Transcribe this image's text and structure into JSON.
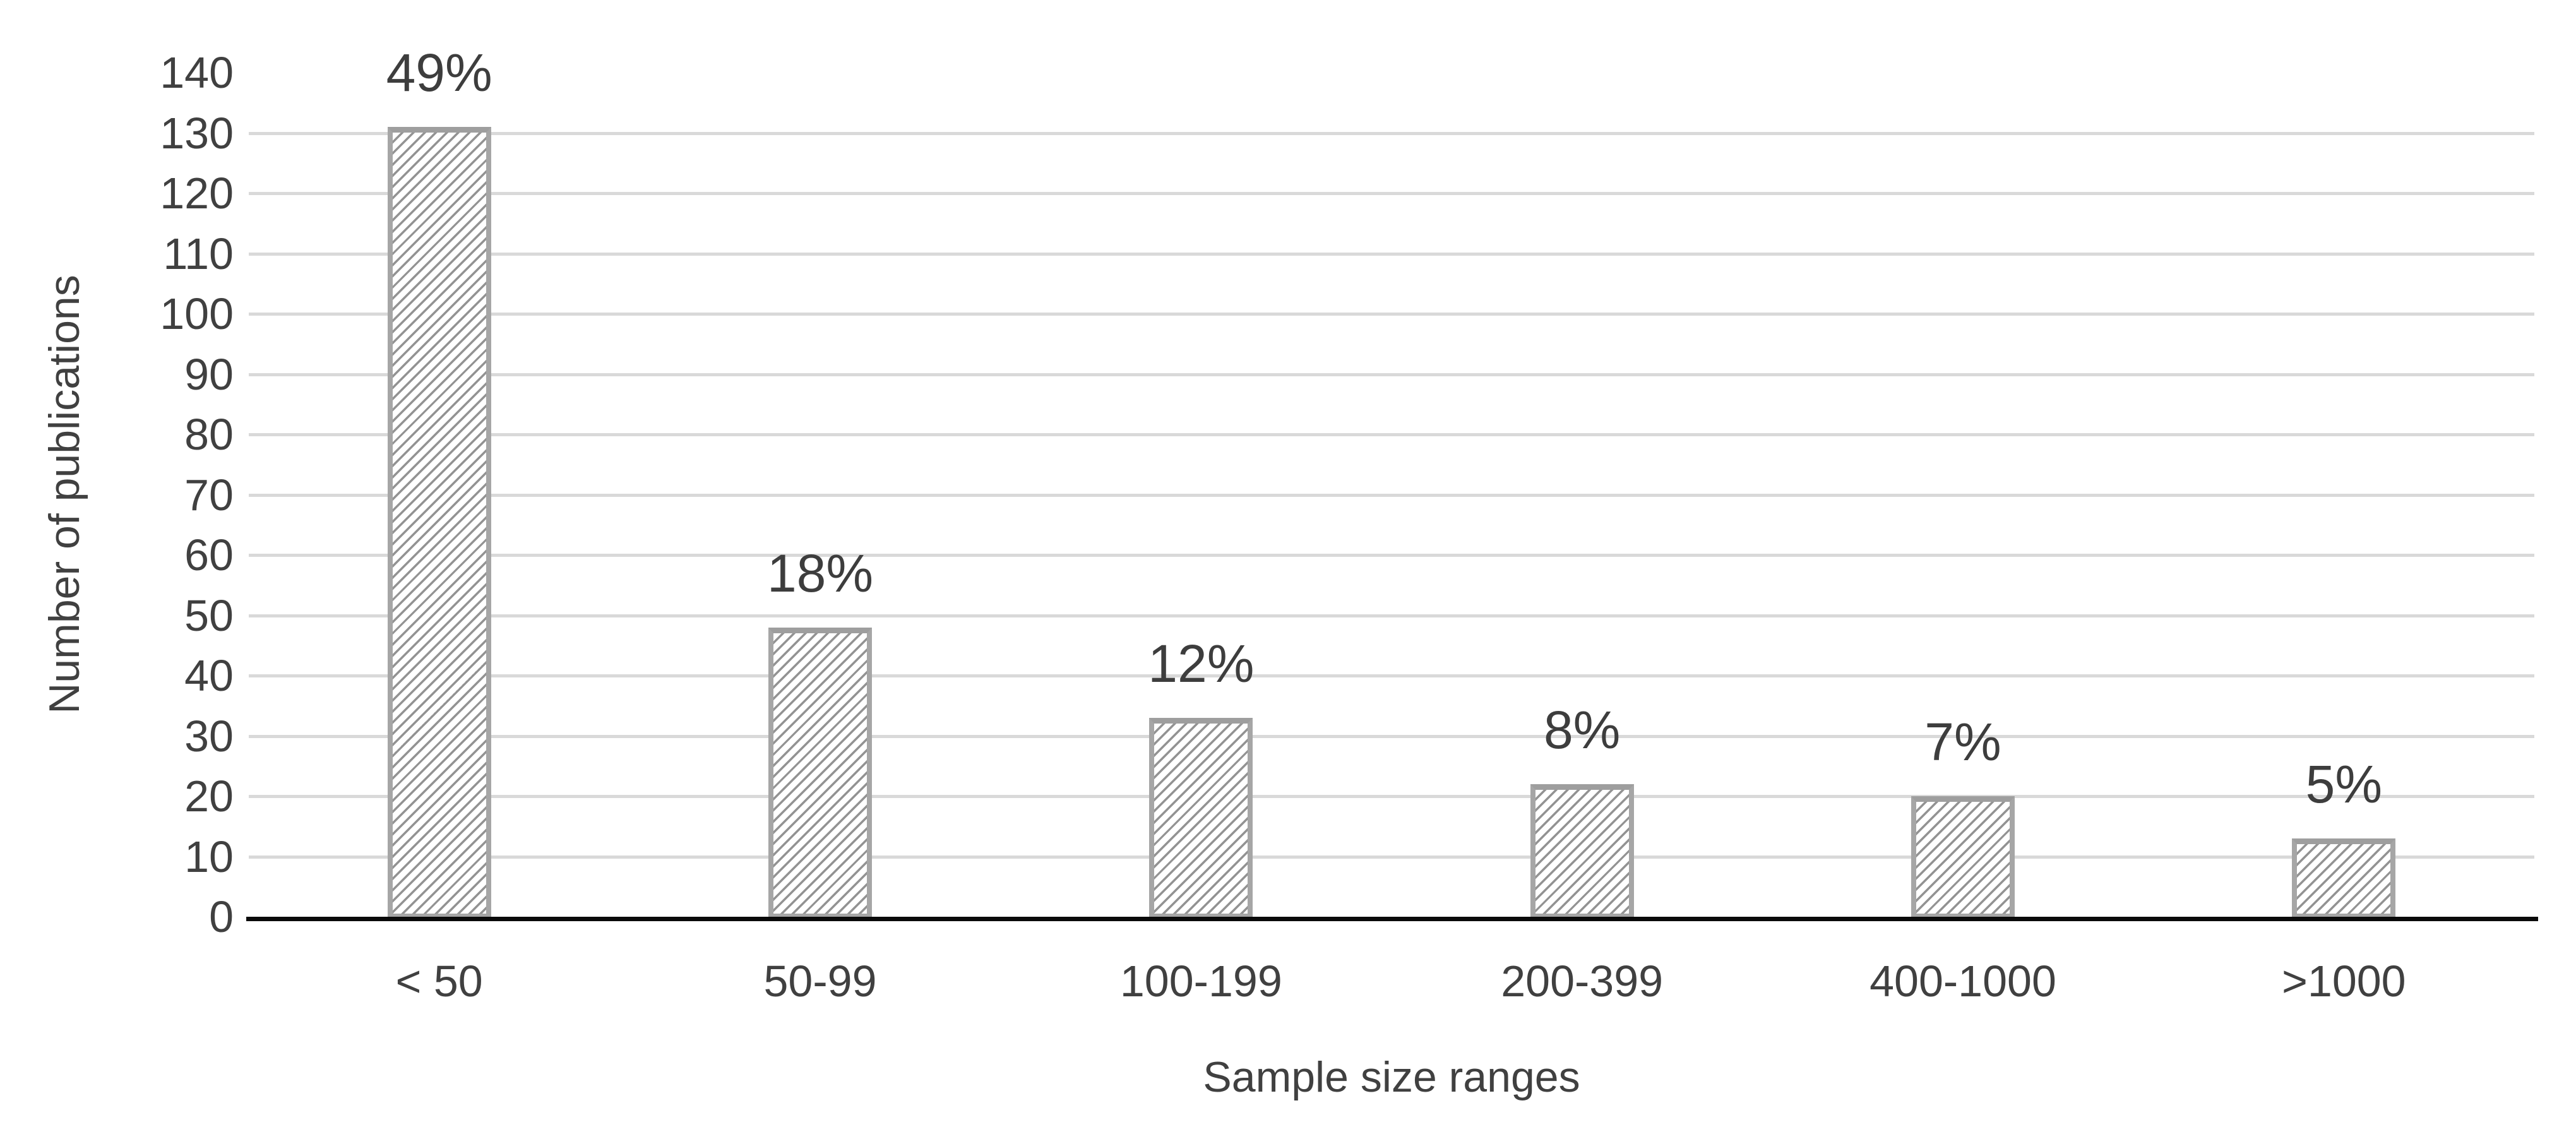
{
  "chart_data": {
    "type": "bar",
    "title": "",
    "xlabel": "Sample size ranges",
    "ylabel": "Number of publications",
    "categories": [
      "< 50",
      "50-99",
      "100-199",
      "200-399",
      "400-1000",
      ">1000"
    ],
    "values": [
      131,
      48,
      33,
      22,
      20,
      13
    ],
    "bar_labels": [
      "49%",
      "18%",
      "12%",
      "8%",
      "7%",
      "5%"
    ],
    "yticks": [
      0,
      10,
      20,
      30,
      40,
      50,
      60,
      70,
      80,
      90,
      100,
      110,
      120,
      130,
      140
    ],
    "ylim": [
      0,
      140
    ],
    "grid": "horizontal, every 10 from 10 to 130",
    "legend_position": "none",
    "bar_style": "white fill, upward diagonal hatch, gray border"
  },
  "style": {
    "background_color": "#ffffff",
    "text_color": "#404040",
    "gridline_color": "#d9d9d9",
    "axis_line_color": "#0a0a0a",
    "bar_border_color": "#a6a6a6",
    "hatch_line_color": "#939393"
  }
}
